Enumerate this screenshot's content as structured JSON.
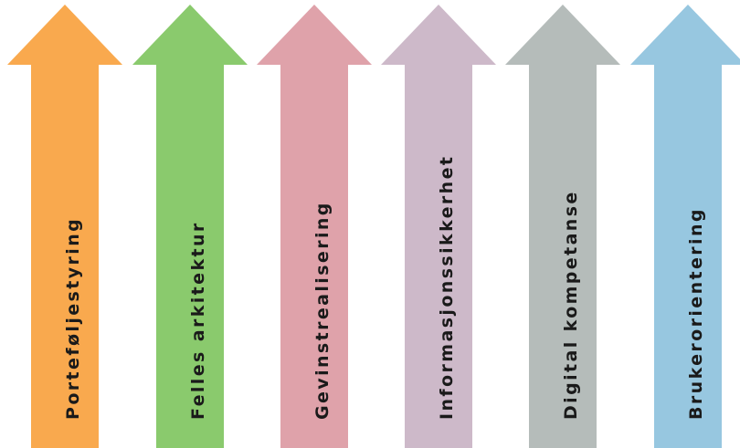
{
  "arrows": [
    {
      "label": "Porteføljestyring",
      "color": "#F9A94E"
    },
    {
      "label": "Felles arkitektur",
      "color": "#8ACA6D"
    },
    {
      "label": "Gevinstrealisering",
      "color": "#DFA2AA"
    },
    {
      "label": "Informasjonssikkerhet",
      "color": "#CDB9C9"
    },
    {
      "label": "Digital kompetanse",
      "color": "#B5BCBA"
    },
    {
      "label": "Brukerorientering",
      "color": "#97C7E0"
    }
  ]
}
